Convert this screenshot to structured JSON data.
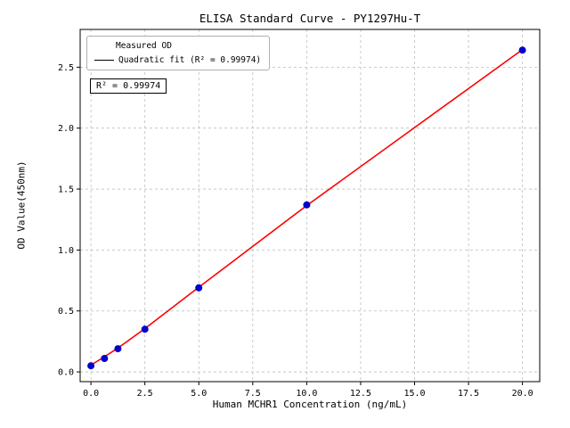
{
  "chart_data": {
    "type": "scatter",
    "title": "ELISA Standard Curve - PY1297Hu-T",
    "xlabel": "Human MCHR1 Concentration (ng/mL)",
    "ylabel": "OD Value(450nm)",
    "xlim": [
      -0.5,
      20.8
    ],
    "ylim": [
      -0.08,
      2.81
    ],
    "xticks": [
      0.0,
      2.5,
      5.0,
      7.5,
      10.0,
      12.5,
      15.0,
      17.5,
      20.0
    ],
    "yticks": [
      0.0,
      0.5,
      1.0,
      1.5,
      2.0,
      2.5
    ],
    "grid": true,
    "legend_position": "upper left",
    "annotation": "R² = 0.99974",
    "colors": {
      "scatter": "#0000cd",
      "fit_line": "#ff0000",
      "grid": "#bdbdbd",
      "frame": "#000000"
    },
    "series": [
      {
        "name": "Measured OD",
        "kind": "scatter",
        "color": "#0000cd",
        "x": [
          0,
          0.625,
          1.25,
          2.5,
          5,
          10,
          20
        ],
        "y": [
          0.05,
          0.11,
          0.19,
          0.35,
          0.69,
          1.37,
          2.64
        ]
      },
      {
        "name": "Quadratic fit (R² = 0.99974)",
        "kind": "line",
        "color": "#ff0000",
        "x": [
          0,
          0.625,
          1.25,
          2.5,
          5,
          10,
          20
        ],
        "y": [
          0.055,
          0.125,
          0.195,
          0.355,
          0.695,
          1.365,
          2.645
        ]
      }
    ]
  }
}
